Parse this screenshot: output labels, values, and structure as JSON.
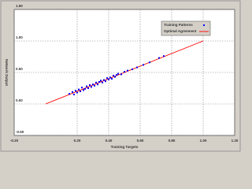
{
  "chart_data": {
    "type": "scatter",
    "x_label": "Training Targets",
    "y_label": "Network Output",
    "xlim": [
      -0.2,
      1.2
    ],
    "ylim": [
      -0.5,
      1.5
    ],
    "xticks": [
      {
        "value": -0.2,
        "label": "-0.20"
      },
      {
        "value": 0.2,
        "label": "0.20"
      },
      {
        "value": 0.4,
        "label": "0.40"
      },
      {
        "value": 0.6,
        "label": "0.60"
      },
      {
        "value": 0.8,
        "label": "0.80"
      },
      {
        "value": 1.0,
        "label": "1.00"
      },
      {
        "value": 1.2,
        "label": "1.20"
      }
    ],
    "yticks": [
      {
        "value": -0.5,
        "label": "-0.50"
      },
      {
        "value": 0.0,
        "label": "0.00"
      },
      {
        "value": 0.5,
        "label": "0.50"
      },
      {
        "value": 1.0,
        "label": "1.00"
      },
      {
        "value": 1.5,
        "label": "1.50"
      }
    ],
    "grid": true,
    "series": [
      {
        "name": "Training Patterns",
        "color": "#0000ff",
        "kind": "scatter",
        "x": [
          0.15,
          0.17,
          0.18,
          0.19,
          0.2,
          0.21,
          0.22,
          0.23,
          0.24,
          0.25,
          0.26,
          0.27,
          0.28,
          0.29,
          0.3,
          0.31,
          0.32,
          0.33,
          0.34,
          0.35,
          0.36,
          0.37,
          0.38,
          0.39,
          0.4,
          0.41,
          0.42,
          0.43,
          0.44,
          0.45,
          0.46,
          0.48,
          0.5,
          0.52,
          0.55,
          0.58,
          0.62,
          0.66,
          0.72,
          0.75
        ],
        "values": [
          0.16,
          0.19,
          0.15,
          0.21,
          0.18,
          0.23,
          0.2,
          0.26,
          0.22,
          0.24,
          0.28,
          0.25,
          0.3,
          0.27,
          0.31,
          0.29,
          0.34,
          0.31,
          0.35,
          0.37,
          0.34,
          0.38,
          0.36,
          0.41,
          0.39,
          0.42,
          0.4,
          0.45,
          0.43,
          0.46,
          0.48,
          0.47,
          0.51,
          0.53,
          0.55,
          0.58,
          0.62,
          0.66,
          0.73,
          0.76
        ]
      },
      {
        "name": "Optimal Agreement",
        "color": "#ff0000",
        "kind": "line",
        "x": [
          0,
          1
        ],
        "values": [
          0,
          1
        ]
      }
    ]
  }
}
